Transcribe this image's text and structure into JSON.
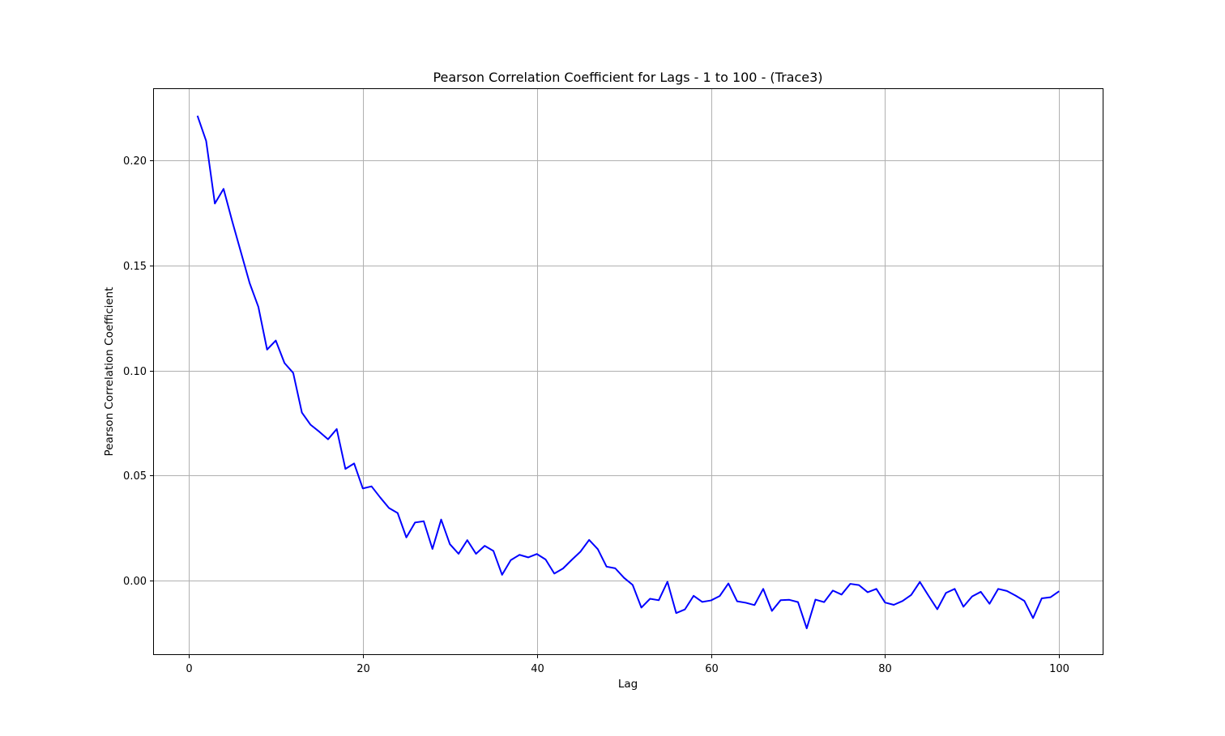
{
  "chart_data": {
    "type": "line",
    "title": "Pearson Correlation Coefficient for Lags - 1 to 100 - (Trace3)",
    "xlabel": "Lag",
    "ylabel": "Pearson Correlation Coefficient",
    "xlim": [
      -4,
      105
    ],
    "ylim": [
      -0.035,
      0.234
    ],
    "xticks": [
      0,
      20,
      40,
      60,
      80,
      100
    ],
    "xtick_labels": [
      "0",
      "20",
      "40",
      "60",
      "80",
      "100"
    ],
    "yticks": [
      0.0,
      0.05,
      0.1,
      0.15,
      0.2
    ],
    "ytick_labels": [
      "0.00",
      "0.05",
      "0.10",
      "0.15",
      "0.20"
    ],
    "grid": true,
    "line_color": "#0000ff",
    "series": [
      {
        "x": [
          1,
          2,
          3,
          4,
          5,
          6,
          7,
          8,
          9,
          10,
          11,
          12,
          13,
          14,
          15,
          16,
          17,
          18,
          19,
          20,
          21,
          22,
          23,
          24,
          25,
          26,
          27,
          28,
          29,
          30,
          31,
          32,
          33,
          34,
          35,
          36,
          37,
          38,
          39,
          40,
          41,
          42,
          43,
          44,
          45,
          46,
          47,
          48,
          49,
          50,
          51,
          52,
          53,
          54,
          55,
          56,
          57,
          58,
          59,
          60,
          61,
          62,
          63,
          64,
          65,
          66,
          67,
          68,
          69,
          70,
          71,
          72,
          73,
          74,
          75,
          76,
          77,
          78,
          79,
          80,
          81,
          82,
          83,
          84,
          85,
          86,
          87,
          88,
          89,
          90,
          91,
          92,
          93,
          94,
          95,
          96,
          97,
          98,
          99,
          100
        ],
        "values": [
          0.2213,
          0.2093,
          0.1795,
          0.1865,
          0.171,
          0.1563,
          0.1416,
          0.1303,
          0.11,
          0.1143,
          0.1036,
          0.0989,
          0.08,
          0.0742,
          0.0709,
          0.0673,
          0.0722,
          0.0532,
          0.0558,
          0.0439,
          0.0449,
          0.0396,
          0.0346,
          0.0322,
          0.0206,
          0.0277,
          0.0283,
          0.0151,
          0.0291,
          0.0174,
          0.0128,
          0.0193,
          0.0128,
          0.0166,
          0.0142,
          0.0028,
          0.0098,
          0.0123,
          0.0111,
          0.0127,
          0.0101,
          0.0034,
          0.0058,
          0.0099,
          0.0138,
          0.0194,
          0.015,
          0.0067,
          0.0059,
          0.0014,
          -0.002,
          -0.0128,
          -0.0086,
          -0.0093,
          -0.0005,
          -0.0154,
          -0.0137,
          -0.0072,
          -0.0101,
          -0.0094,
          -0.0073,
          -0.0013,
          -0.0098,
          -0.0105,
          -0.0116,
          -0.0039,
          -0.0144,
          -0.0093,
          -0.0091,
          -0.0102,
          -0.0227,
          -0.009,
          -0.0102,
          -0.0047,
          -0.0066,
          -0.0015,
          -0.0021,
          -0.0055,
          -0.0039,
          -0.0104,
          -0.0115,
          -0.0097,
          -0.0068,
          -0.0006,
          -0.0072,
          -0.0136,
          -0.0058,
          -0.0039,
          -0.0124,
          -0.0075,
          -0.0053,
          -0.011,
          -0.0039,
          -0.0049,
          -0.0071,
          -0.0096,
          -0.0178,
          -0.0084,
          -0.0079,
          -0.005
        ]
      }
    ]
  }
}
